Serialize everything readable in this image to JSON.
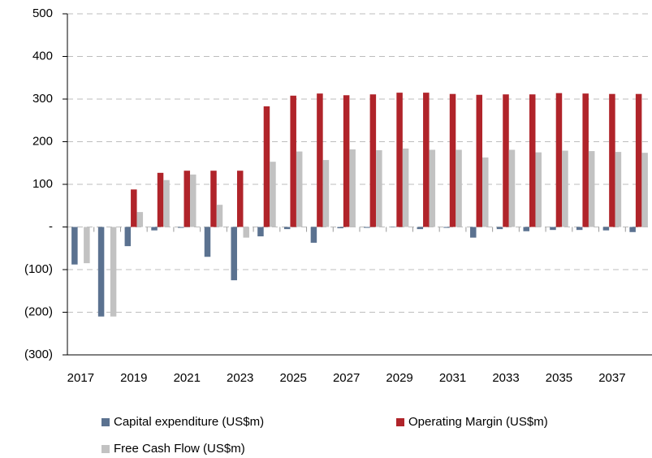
{
  "chart_data": {
    "type": "bar",
    "categories": [
      "2017",
      null,
      "2019",
      null,
      "2021",
      null,
      "2023",
      null,
      "2025",
      null,
      "2027",
      null,
      "2029",
      null,
      "2031",
      null,
      "2033",
      null,
      "2035",
      null,
      "2037",
      null
    ],
    "series": [
      {
        "name": "Capital expenditure (US$m)",
        "color": "#5b7290",
        "values": [
          -88,
          -210,
          -45,
          -8,
          -2,
          -70,
          -125,
          -22,
          -5,
          -37,
          -3,
          -2,
          -1,
          -5,
          -2,
          -25,
          -5,
          -10,
          -7,
          -7,
          -8,
          -12
        ]
      },
      {
        "name": "Operating Margin (US$m)",
        "color": "#b0242a",
        "values": [
          0,
          0,
          88,
          127,
          132,
          132,
          132,
          283,
          308,
          313,
          309,
          311,
          315,
          315,
          312,
          310,
          311,
          311,
          314,
          313,
          312,
          312
        ]
      },
      {
        "name": "Free Cash Flow (US$m)",
        "color": "#c2c2c2",
        "values": [
          -85,
          -210,
          35,
          110,
          123,
          52,
          -25,
          153,
          177,
          157,
          182,
          180,
          184,
          181,
          181,
          163,
          181,
          175,
          179,
          178,
          176,
          174
        ]
      }
    ],
    "ylim": [
      -300,
      500
    ],
    "yticks": [
      {
        "value": -300,
        "label": "(300)"
      },
      {
        "value": -200,
        "label": "(200)"
      },
      {
        "value": -100,
        "label": "(100)"
      },
      {
        "value": 0,
        "label": "-"
      },
      100,
      200,
      300,
      400,
      500
    ],
    "grid": true,
    "legend": "bottom"
  }
}
